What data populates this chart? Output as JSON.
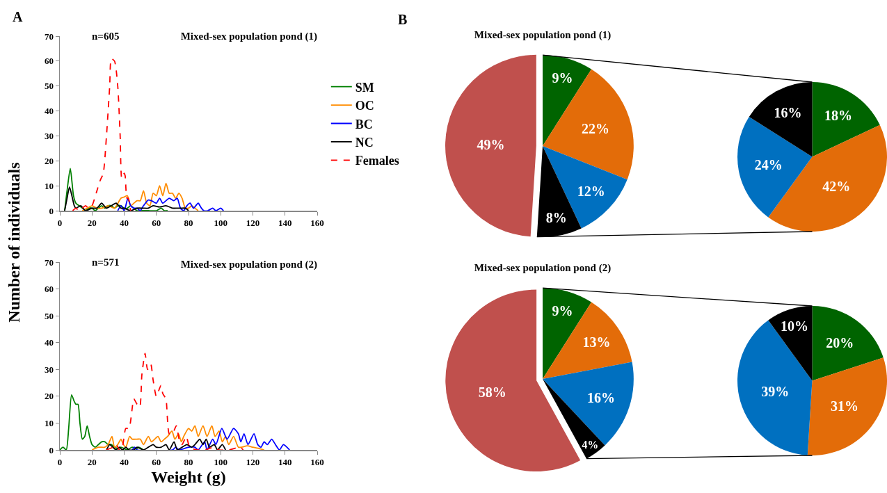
{
  "chart_data": [
    {
      "type": "line",
      "title": "Mixed-sex population pond (1)",
      "ylabel": "Number of individuals",
      "annotations": [
        "A",
        "n=605"
      ],
      "xlim": [
        0,
        160
      ],
      "xticks": [
        0,
        20,
        40,
        60,
        80,
        100,
        120,
        140,
        160
      ],
      "ylim": [
        0,
        70
      ],
      "yticks": [
        0,
        10,
        20,
        30,
        40,
        50,
        60,
        70
      ],
      "grid": false,
      "legend": "right",
      "marker": "none",
      "line_style": "solid",
      "series": [
        {
          "name": "SM",
          "color": "#008000",
          "x": [
            3,
            4.5,
            6.5,
            8.5,
            10,
            12,
            14,
            16,
            18,
            20,
            22,
            24,
            26,
            28,
            30,
            32,
            34,
            36,
            38,
            40,
            42,
            44,
            46,
            48,
            50,
            55,
            60,
            63,
            65,
            67
          ],
          "values": [
            0,
            8,
            17,
            6,
            3,
            2,
            1,
            0,
            1,
            1,
            0,
            1,
            2,
            1,
            2,
            2,
            1,
            2,
            2,
            1,
            1,
            2,
            1,
            0,
            0,
            0,
            0,
            1,
            0,
            0
          ]
        },
        {
          "name": "OC",
          "color": "#ff8c00",
          "x": [
            14,
            17,
            20,
            23,
            26,
            30,
            34,
            38,
            40,
            42,
            44,
            46,
            48,
            50,
            52,
            54,
            56,
            58,
            60,
            62,
            64,
            66,
            68,
            70,
            72,
            74,
            76,
            78,
            80,
            82,
            84,
            86
          ],
          "values": [
            0,
            1,
            2,
            1,
            1,
            2,
            1,
            5,
            5.5,
            6,
            2,
            3,
            4,
            4,
            8,
            3,
            2,
            7,
            6,
            10,
            6,
            11,
            7,
            7,
            5,
            7,
            5,
            1,
            1,
            2,
            1,
            0
          ]
        },
        {
          "name": "BC",
          "color": "#0000ff",
          "x": [
            36,
            38,
            40,
            42.3,
            44,
            46,
            48,
            50,
            52,
            55,
            57,
            60,
            62,
            64,
            66,
            68,
            70.8,
            73,
            75,
            77,
            79,
            81,
            83,
            86,
            88,
            89.5,
            92,
            95,
            97,
            100,
            101.7
          ],
          "values": [
            0,
            2,
            0,
            5,
            2,
            1,
            1,
            0,
            2,
            4.3,
            4,
            3,
            5,
            3,
            4,
            5,
            4,
            5,
            1,
            0,
            2,
            3,
            1,
            3,
            1,
            0,
            0,
            1,
            0,
            1,
            0
          ]
        },
        {
          "name": "NC",
          "color": "#000000",
          "x": [
            3,
            4.5,
            6,
            7.5,
            9,
            10,
            13,
            16,
            20,
            23,
            26,
            29,
            32,
            35,
            38,
            40,
            44,
            48,
            52,
            55,
            58,
            62,
            66,
            70,
            73,
            75,
            78,
            80
          ],
          "values": [
            0,
            5,
            9.5,
            6,
            2,
            1,
            2,
            0,
            1,
            1,
            3,
            1,
            2,
            3,
            1,
            1,
            0,
            1,
            1,
            1,
            2,
            1.5,
            2,
            1,
            1,
            1,
            1,
            0
          ]
        },
        {
          "name": "Females",
          "color": "#ff0000",
          "line_style": "dashed",
          "x": [
            8,
            10,
            12,
            14,
            16,
            18,
            20,
            22.6,
            25,
            27,
            29,
            31,
            32,
            34,
            36,
            37.5,
            38.5,
            40,
            40.6,
            41.7,
            42.5,
            44
          ],
          "values": [
            0,
            1,
            0,
            1,
            2,
            1,
            2,
            7,
            12,
            15,
            30,
            50,
            61,
            60,
            50,
            30,
            13,
            15,
            14,
            5,
            5,
            0
          ]
        }
      ]
    },
    {
      "type": "line",
      "title": "Mixed-sex population pond (2)",
      "xlabel": "Weight (g)",
      "annotations": [
        "n=571"
      ],
      "xlim": [
        0,
        160
      ],
      "xticks": [
        0,
        20,
        40,
        60,
        80,
        100,
        120,
        140,
        160
      ],
      "ylim": [
        0,
        70
      ],
      "yticks": [
        0,
        10,
        20,
        30,
        40,
        50,
        60,
        70
      ],
      "grid": false,
      "marker": "none",
      "line_style": "solid",
      "series": [
        {
          "color": "#008000",
          "x": [
            0,
            2,
            4,
            5.5,
            7.3,
            9,
            10,
            11.3,
            12.5,
            14,
            15.5,
            17,
            18.5,
            20,
            22,
            24,
            26,
            28,
            30,
            32,
            34,
            36,
            38,
            40,
            42,
            45,
            48,
            49,
            52
          ],
          "values": [
            0,
            1,
            0,
            8,
            20.5,
            18,
            17,
            17,
            10,
            4,
            5,
            9,
            5,
            2,
            1,
            2,
            3,
            3,
            2,
            2,
            1,
            0.5,
            1,
            0.5,
            0,
            1,
            0.5,
            1,
            0
          ]
        },
        {
          "color": "#ff8c00",
          "x": [
            20,
            24,
            28,
            30,
            32.4,
            34,
            36,
            38,
            39.5,
            41,
            43.4,
            45,
            48,
            50,
            52,
            55,
            57,
            59,
            61,
            63,
            65,
            67,
            69.7,
            71.5,
            73.8,
            75.5,
            77,
            80,
            82,
            84,
            86,
            89,
            91.5,
            94.5,
            96.5,
            99,
            101,
            103,
            105,
            108,
            111,
            113,
            116.5,
            120,
            124,
            127
          ],
          "values": [
            0,
            1,
            1,
            2,
            5,
            1,
            2,
            4,
            2,
            1,
            5,
            4,
            4,
            4,
            2,
            5,
            3,
            4,
            5,
            3,
            4,
            5,
            7,
            4,
            6,
            3,
            5,
            8,
            7,
            9,
            5,
            9,
            5,
            9,
            5,
            7,
            3,
            5,
            2,
            5,
            1,
            1,
            1.5,
            1,
            0.5,
            0
          ]
        },
        {
          "color": "#0000ff",
          "x": [
            45,
            46.5,
            48,
            70,
            72,
            74,
            80,
            84,
            86,
            90,
            91.5,
            95,
            97,
            100.7,
            104,
            108,
            111,
            112.5,
            114.5,
            117,
            120.7,
            123,
            125,
            127,
            129,
            131.7,
            134,
            136.5,
            139,
            142.8
          ],
          "values": [
            0,
            1,
            0,
            0,
            1,
            0,
            1,
            1,
            0,
            3,
            0,
            4,
            2,
            8,
            4,
            8,
            6,
            3,
            6,
            2,
            6,
            2,
            1,
            3,
            2,
            4,
            2,
            0,
            2,
            0
          ]
        },
        {
          "color": "#000000",
          "x": [
            29,
            31,
            33,
            35,
            37,
            39,
            41,
            43,
            46,
            48,
            50,
            52,
            55,
            58,
            60,
            63,
            66,
            68,
            71,
            73,
            76,
            79,
            82,
            84,
            87,
            89,
            91,
            93,
            96,
            98,
            101,
            103
          ],
          "values": [
            0,
            2,
            1,
            0,
            1,
            0,
            1,
            0,
            0,
            1,
            0.5,
            0,
            1,
            2,
            1,
            1,
            2,
            0,
            3,
            0,
            1,
            2,
            1,
            2,
            4,
            2,
            4,
            1,
            2,
            0,
            2,
            0
          ]
        },
        {
          "color": "#ff0000",
          "line_style": "dashed",
          "x": [
            29,
            33,
            35,
            37,
            38.5,
            41,
            43,
            46,
            48,
            49.7,
            51,
            53,
            54.5,
            56.5,
            58,
            60,
            62.8,
            64,
            65,
            66,
            68,
            70,
            72.4,
            74.5,
            76,
            78.6,
            80.7,
            85,
            90,
            96,
            99,
            105,
            112,
            114
          ],
          "values": [
            0,
            1,
            2,
            0,
            0,
            8,
            8,
            19,
            17,
            16,
            28,
            36,
            30,
            32,
            26,
            20,
            24,
            21,
            20,
            19,
            6,
            6,
            9,
            3,
            2,
            5,
            1,
            0,
            0,
            1,
            0,
            0,
            1,
            0
          ]
        }
      ]
    },
    {
      "type": "pie",
      "title": "Mixed-sex population pond (1)",
      "annotations": [
        "B"
      ],
      "categories": [
        null,
        null,
        null,
        null,
        null
      ],
      "values": [
        9,
        22,
        12,
        8,
        49
      ],
      "value_labels": [
        "9%",
        "22%",
        "12%",
        "8%",
        "49%"
      ],
      "colors": [
        "#006400",
        "#e36c09",
        "#0070c0",
        "#000000",
        "#c0504d"
      ]
    },
    {
      "type": "pie",
      "categories": [
        null,
        null,
        null,
        null
      ],
      "values": [
        18,
        42,
        24,
        16
      ],
      "value_labels": [
        "18%",
        "42%",
        "24%",
        "16%"
      ],
      "colors": [
        "#006400",
        "#e36c09",
        "#0070c0",
        "#000000"
      ]
    },
    {
      "type": "pie",
      "title": "Mixed-sex population pond (2)",
      "categories": [
        null,
        null,
        null,
        null,
        null
      ],
      "values": [
        9,
        13,
        16,
        4,
        58
      ],
      "value_labels": [
        "9%",
        "13%",
        "16%",
        "4%",
        "58%"
      ],
      "colors": [
        "#006400",
        "#e36c09",
        "#0070c0",
        "#000000",
        "#c0504d"
      ]
    },
    {
      "type": "pie",
      "categories": [
        null,
        null,
        null,
        null
      ],
      "values": [
        20,
        31,
        39,
        10
      ],
      "value_labels": [
        "20%",
        "31%",
        "39%",
        "10%"
      ],
      "colors": [
        "#006400",
        "#e36c09",
        "#0070c0",
        "#000000"
      ]
    }
  ]
}
